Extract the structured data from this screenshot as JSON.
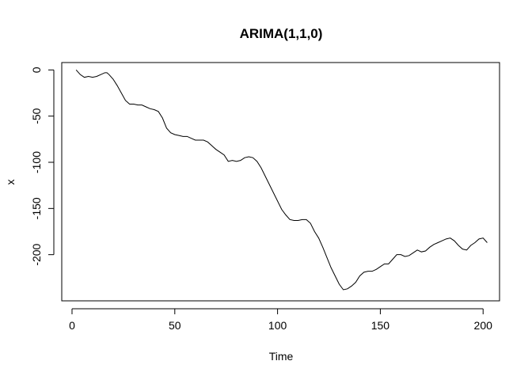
{
  "chart_data": {
    "type": "line",
    "title": "ARIMA(1,1,0)",
    "xlabel": "Time",
    "ylabel": "x",
    "xlim": [
      -5,
      208
    ],
    "ylim": [
      -250,
      8
    ],
    "xticks": [
      0,
      50,
      100,
      150,
      200
    ],
    "xtick_labels": [
      "0",
      "50",
      "100",
      "150",
      "200"
    ],
    "yticks": [
      0,
      -50,
      -100,
      -150,
      -200
    ],
    "ytick_labels": [
      "0",
      "-50",
      "-100",
      "-150",
      "-200"
    ],
    "grid": false,
    "series": [
      {
        "color": "#000000",
        "x": [
          2,
          4,
          6,
          8,
          10,
          12,
          14,
          16,
          17,
          18,
          20,
          22,
          24,
          26,
          28,
          30,
          32,
          34,
          36,
          38,
          40,
          42,
          44,
          46,
          48,
          50,
          52,
          54,
          56,
          58,
          60,
          62,
          64,
          66,
          68,
          70,
          72,
          74,
          76,
          78,
          80,
          82,
          84,
          86,
          88,
          90,
          92,
          94,
          96,
          98,
          100,
          102,
          104,
          106,
          108,
          110,
          112,
          114,
          116,
          118,
          120,
          122,
          124,
          126,
          128,
          130,
          132,
          134,
          136,
          138,
          140,
          142,
          144,
          146,
          148,
          150,
          152,
          154,
          156,
          158,
          160,
          162,
          164,
          166,
          168,
          170,
          172,
          174,
          176,
          178,
          180,
          182,
          184,
          186,
          188,
          190,
          192,
          194,
          196,
          198,
          200,
          202
        ],
        "values": [
          0,
          -5,
          -8,
          -7,
          -8,
          -7,
          -5,
          -3,
          -3,
          -5,
          -10,
          -17,
          -25,
          -33,
          -37,
          -37,
          -38,
          -38,
          -40,
          -42,
          -43,
          -45,
          -52,
          -63,
          -68,
          -70,
          -71,
          -72,
          -72,
          -74,
          -76,
          -76,
          -76,
          -78,
          -82,
          -86,
          -89,
          -92,
          -99,
          -98,
          -99,
          -98,
          -95,
          -94,
          -95,
          -99,
          -106,
          -115,
          -124,
          -133,
          -142,
          -151,
          -157,
          -162,
          -163,
          -163,
          -162,
          -162,
          -166,
          -175,
          -182,
          -192,
          -203,
          -214,
          -223,
          -232,
          -238,
          -237,
          -234,
          -230,
          -223,
          -219,
          -218,
          -218,
          -216,
          -213,
          -210,
          -210,
          -205,
          -200,
          -200,
          -202,
          -201,
          -198,
          -195,
          -197,
          -196,
          -192,
          -189,
          -187,
          -185,
          -183,
          -182,
          -185,
          -190,
          -194,
          -195,
          -190,
          -187,
          -183,
          -182,
          -187
        ]
      }
    ]
  }
}
